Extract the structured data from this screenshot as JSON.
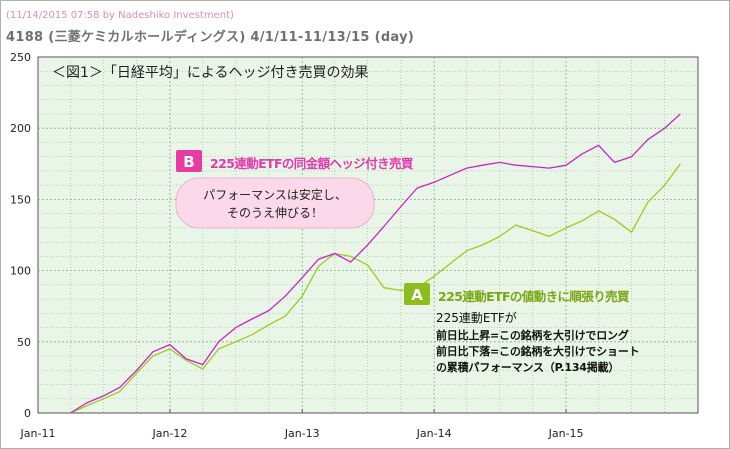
{
  "header": {
    "copyright": "(11/14/2015 07:58 by Nadeshiko Investment)",
    "subtitle": "4188 (三菱ケミカルホールディングス) 4/1/11-11/13/15 (day)"
  },
  "colors": {
    "background": "#e9f5e6",
    "grid": "#7fb27f",
    "series_a": "#9ccc1e",
    "series_b": "#cc22cc",
    "callout_b_fill": "#fbd9ea",
    "badge_a": "#8bbd1b",
    "badge_b": "#e63ca0"
  },
  "chart_data": {
    "type": "line",
    "title": "＜図1＞「日経平均」によるヘッジ付き売買の効果",
    "x_tick_labels": [
      "Jan-11",
      "Jan-12",
      "Jan-13",
      "Jan-14",
      "Jan-15"
    ],
    "y_tick_labels": [
      "0",
      "50",
      "100",
      "150",
      "200",
      "250"
    ],
    "ylim": [
      0,
      250
    ],
    "grid": true,
    "series": [
      {
        "name": "225連動ETFの値動きに順張り売買",
        "badge": "A",
        "x": [
          "2011-04-01",
          "2011-05-15",
          "2011-07-01",
          "2011-08-15",
          "2011-10-01",
          "2011-11-15",
          "2012-01-01",
          "2012-02-15",
          "2012-04-01",
          "2012-05-15",
          "2012-07-01",
          "2012-08-15",
          "2012-10-01",
          "2012-11-15",
          "2013-01-01",
          "2013-02-15",
          "2013-04-01",
          "2013-05-15",
          "2013-07-01",
          "2013-08-15",
          "2013-10-01",
          "2013-11-15",
          "2014-01-01",
          "2014-02-15",
          "2014-04-01",
          "2014-05-15",
          "2014-07-01",
          "2014-08-15",
          "2014-10-01",
          "2014-11-15",
          "2015-01-01",
          "2015-02-15",
          "2015-04-01",
          "2015-05-15",
          "2015-07-01",
          "2015-08-15",
          "2015-10-01",
          "2015-11-13"
        ],
        "y": [
          0,
          5,
          10,
          15,
          28,
          40,
          45,
          37,
          31,
          45,
          50,
          55,
          62,
          68,
          82,
          103,
          112,
          110,
          104,
          88,
          86,
          88,
          96,
          105,
          114,
          118,
          124,
          132,
          128,
          124,
          130,
          135,
          142,
          136,
          127,
          148,
          160,
          175
        ]
      },
      {
        "name": "225連動ETFの同金額ヘッジ付き売買",
        "badge": "B",
        "x": [
          "2011-04-01",
          "2011-05-15",
          "2011-07-01",
          "2011-08-15",
          "2011-10-01",
          "2011-11-15",
          "2012-01-01",
          "2012-02-15",
          "2012-04-01",
          "2012-05-15",
          "2012-07-01",
          "2012-08-15",
          "2012-10-01",
          "2012-11-15",
          "2013-01-01",
          "2013-02-15",
          "2013-04-01",
          "2013-05-15",
          "2013-07-01",
          "2013-08-15",
          "2013-10-01",
          "2013-11-15",
          "2014-01-01",
          "2014-02-15",
          "2014-04-01",
          "2014-05-15",
          "2014-07-01",
          "2014-08-15",
          "2014-10-01",
          "2014-11-15",
          "2015-01-01",
          "2015-02-15",
          "2015-04-01",
          "2015-05-15",
          "2015-07-01",
          "2015-08-15",
          "2015-10-01",
          "2015-11-13"
        ],
        "y": [
          0,
          7,
          12,
          18,
          30,
          43,
          48,
          38,
          34,
          50,
          60,
          66,
          72,
          82,
          95,
          108,
          112,
          106,
          118,
          131,
          145,
          158,
          162,
          167,
          172,
          174,
          176,
          174,
          173,
          172,
          174,
          182,
          188,
          176,
          180,
          192,
          200,
          210
        ]
      }
    ],
    "annotations": {
      "b_label": "225連動ETFの同金額ヘッジ付き売買",
      "b_note_line1": "パフォーマンスは安定し、",
      "b_note_line2": "そのうえ伸びる！",
      "a_label": "225連動ETFの値動きに順張り売買",
      "a_note_line1": "225連動ETFが",
      "a_note_line2": "前日比上昇=この銘柄を大引けでロング",
      "a_note_line3": "前日比下落=この銘柄を大引けでショート",
      "a_note_line4": "の累積パフォーマンス（P.134掲載）"
    }
  }
}
